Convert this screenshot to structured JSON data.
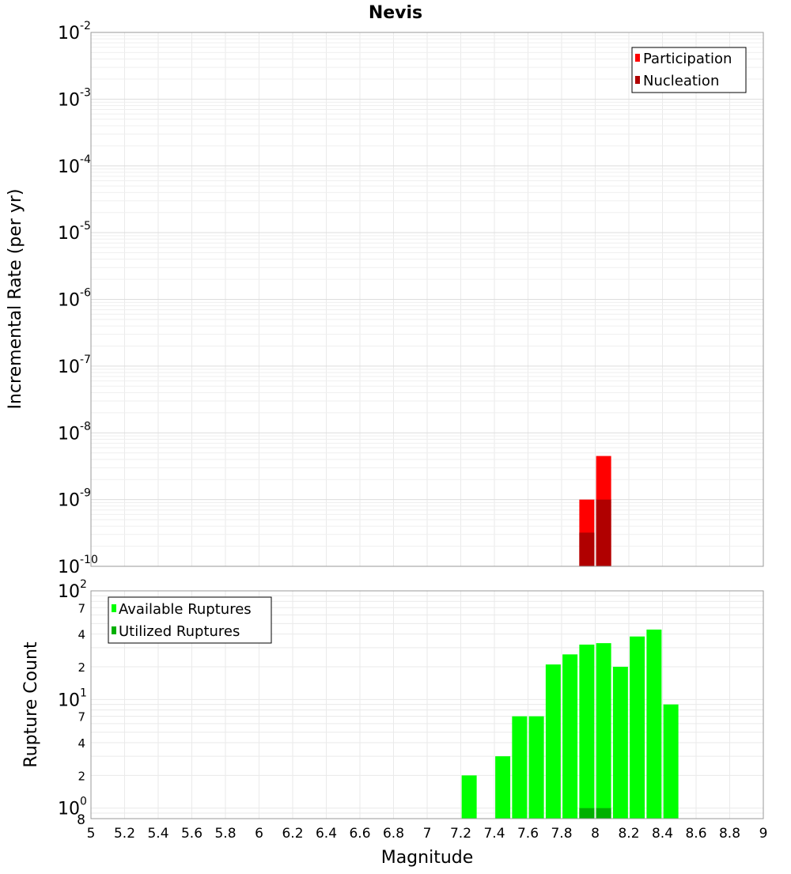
{
  "chart_data": [
    {
      "type": "bar",
      "title": "Nevis",
      "ylabel": "Incremental Rate (per yr)",
      "yscale": "log",
      "ylim": [
        1e-10,
        0.01
      ],
      "xlim": [
        5,
        9
      ],
      "grid": true,
      "legend_position": "top-right",
      "y_ticks": [
        {
          "base": "10",
          "exp": "-10",
          "value": 1e-10
        },
        {
          "base": "10",
          "exp": "-9",
          "value": 1e-09
        },
        {
          "base": "10",
          "exp": "-8",
          "value": 1e-08
        },
        {
          "base": "10",
          "exp": "-7",
          "value": 1e-07
        },
        {
          "base": "10",
          "exp": "-6",
          "value": 1e-06
        },
        {
          "base": "10",
          "exp": "-5",
          "value": 1e-05
        },
        {
          "base": "10",
          "exp": "-4",
          "value": 0.0001
        },
        {
          "base": "10",
          "exp": "-3",
          "value": 0.001
        },
        {
          "base": "10",
          "exp": "-2",
          "value": 0.01
        }
      ],
      "series": [
        {
          "name": "Participation",
          "color": "#ff0000",
          "x": [
            7.95,
            8.05
          ],
          "values": [
            1e-09,
            4.5e-09
          ]
        },
        {
          "name": "Nucleation",
          "color": "#b00000",
          "x": [
            7.95,
            8.05
          ],
          "values": [
            3.2e-10,
            1e-09
          ]
        }
      ]
    },
    {
      "type": "bar",
      "ylabel": "Rupture Count",
      "xlabel": "Magnitude",
      "yscale": "log",
      "ylim": [
        0.8,
        100
      ],
      "xlim": [
        5,
        9
      ],
      "grid": true,
      "legend_position": "top-left",
      "x_ticks": [
        "5",
        "5.2",
        "5.4",
        "5.6",
        "5.8",
        "6",
        "6.2",
        "6.4",
        "6.6",
        "6.8",
        "7",
        "7.2",
        "7.4",
        "7.6",
        "7.8",
        "8",
        "8.2",
        "8.4",
        "8.6",
        "8.8",
        "9"
      ],
      "y_major_ticks": [
        {
          "base": "10",
          "exp": "0",
          "value": 1
        },
        {
          "base": "10",
          "exp": "1",
          "value": 10
        },
        {
          "base": "10",
          "exp": "2",
          "value": 100
        }
      ],
      "y_minor_ticks": [
        {
          "label": "8",
          "value": 0.8
        },
        {
          "label": "2",
          "value": 2
        },
        {
          "label": "4",
          "value": 4
        },
        {
          "label": "7",
          "value": 7
        },
        {
          "label": "2",
          "value": 20
        },
        {
          "label": "4",
          "value": 40
        },
        {
          "label": "7",
          "value": 70
        }
      ],
      "series": [
        {
          "name": "Available Ruptures",
          "color": "#00ff00",
          "x": [
            7.25,
            7.45,
            7.55,
            7.65,
            7.75,
            7.85,
            7.95,
            8.05,
            8.15,
            8.25,
            8.35,
            8.45
          ],
          "values": [
            2,
            3,
            7,
            7,
            21,
            26,
            32,
            33,
            20,
            38,
            44,
            9
          ]
        },
        {
          "name": "Utilized Ruptures",
          "color": "#00b000",
          "x": [
            7.95,
            8.05
          ],
          "values": [
            1,
            1
          ]
        }
      ]
    }
  ]
}
